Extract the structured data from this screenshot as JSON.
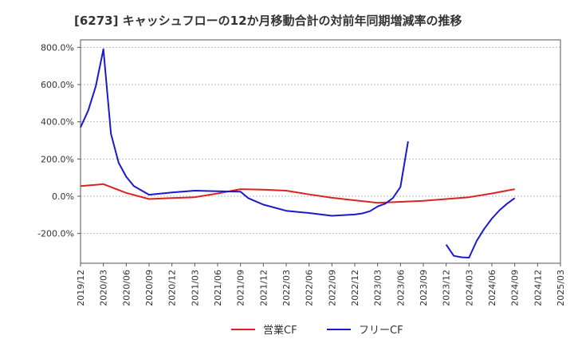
{
  "chart_data": {
    "type": "line",
    "title": "[6273]  キャッシュフローの12か月移動合計の対前年同期増減率の推移",
    "xlabel": "",
    "ylabel": "",
    "ylim": [
      -360,
      840
    ],
    "yticks": [
      800,
      600,
      400,
      200,
      0,
      -200
    ],
    "ytick_labels": [
      "800.0%",
      "600.0%",
      "400.0%",
      "200.0%",
      "0.0%",
      "-200.0%"
    ],
    "x_tick_labels": [
      "2019/12",
      "2020/03",
      "2020/06",
      "2020/09",
      "2020/12",
      "2021/03",
      "2021/06",
      "2021/09",
      "2021/12",
      "2022/03",
      "2022/06",
      "2022/09",
      "2022/12",
      "2023/03",
      "2023/06",
      "2023/09",
      "2023/12",
      "2024/03",
      "2024/06",
      "2024/09",
      "2024/12",
      "2025/03"
    ],
    "x_start": "2019/12",
    "x_end": "2025/03",
    "grid": "horizontal-dashed",
    "legend_position": "bottom-center",
    "series": [
      {
        "name": "営業CF",
        "color": "#dd2222",
        "points": [
          [
            "2019/12",
            55
          ],
          [
            "2020/03",
            65
          ],
          [
            "2020/06",
            18
          ],
          [
            "2020/09",
            -15
          ],
          [
            "2020/12",
            -10
          ],
          [
            "2021/03",
            -5
          ],
          [
            "2021/06",
            15
          ],
          [
            "2021/09",
            38
          ],
          [
            "2021/12",
            35
          ],
          [
            "2022/03",
            30
          ],
          [
            "2022/06",
            10
          ],
          [
            "2022/09",
            -8
          ],
          [
            "2022/12",
            -22
          ],
          [
            "2023/03",
            -35
          ],
          [
            "2023/06",
            -30
          ],
          [
            "2023/09",
            -25
          ],
          [
            "2023/12",
            -15
          ],
          [
            "2024/03",
            -5
          ],
          [
            "2024/06",
            15
          ],
          [
            "2024/09",
            38
          ]
        ]
      },
      {
        "name": "フリーCF",
        "color": "#1a1acc",
        "segments": [
          [
            [
              "2019/12",
              370
            ],
            [
              "2020/01",
              460
            ],
            [
              "2020/02",
              590
            ],
            [
              "2020/03",
              790
            ],
            [
              "2020/04",
              335
            ],
            [
              "2020/05",
              180
            ],
            [
              "2020/06",
              105
            ],
            [
              "2020/07",
              55
            ],
            [
              "2020/09",
              8
            ],
            [
              "2020/12",
              20
            ],
            [
              "2021/03",
              30
            ],
            [
              "2021/06",
              27
            ],
            [
              "2021/09",
              25
            ],
            [
              "2021/10",
              -10
            ],
            [
              "2021/12",
              -45
            ],
            [
              "2022/03",
              -78
            ],
            [
              "2022/06",
              -90
            ],
            [
              "2022/09",
              -105
            ],
            [
              "2022/12",
              -98
            ],
            [
              "2023/01",
              -92
            ],
            [
              "2023/02",
              -80
            ],
            [
              "2023/03",
              -55
            ],
            [
              "2023/04",
              -40
            ],
            [
              "2023/05",
              -10
            ],
            [
              "2023/06",
              50
            ],
            [
              "2023/07",
              295
            ]
          ],
          [
            [
              "2023/12",
              -260
            ],
            [
              "2024/01",
              -320
            ],
            [
              "2024/02",
              -328
            ],
            [
              "2024/03",
              -330
            ],
            [
              "2024/04",
              -240
            ],
            [
              "2024/05",
              -175
            ],
            [
              "2024/06",
              -120
            ],
            [
              "2024/07",
              -75
            ],
            [
              "2024/08",
              -40
            ],
            [
              "2024/09",
              -10
            ]
          ]
        ]
      }
    ]
  }
}
